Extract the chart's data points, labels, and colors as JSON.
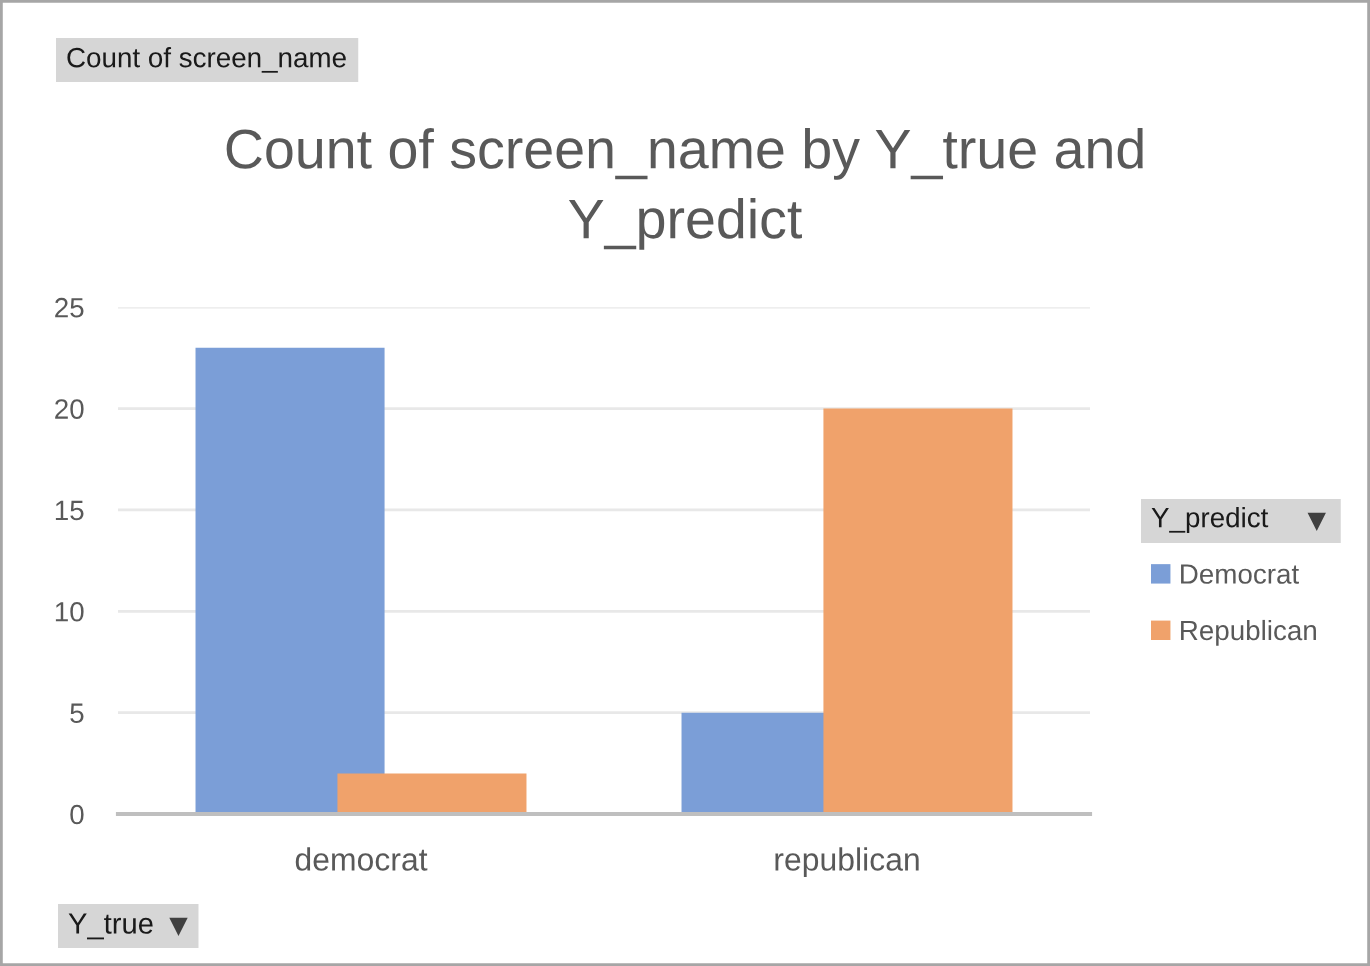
{
  "chart_data": {
    "type": "bar",
    "title": "Count of screen_name by Y_true and Y_predict",
    "xlabel": "Y_true",
    "legend_title": "Y_predict",
    "annotations": [
      "Count of screen_name"
    ],
    "categories": [
      "democrat",
      "republican"
    ],
    "series": [
      {
        "name": "Democrat",
        "color": "#7b9ed7",
        "values": [
          23,
          5
        ]
      },
      {
        "name": "Republican",
        "color": "#f0a26b",
        "values": [
          2,
          20
        ]
      }
    ],
    "ylim": [
      0,
      25
    ],
    "yticks": [
      0,
      5,
      10,
      15,
      20,
      25
    ],
    "grid": "y",
    "legend": "right"
  }
}
